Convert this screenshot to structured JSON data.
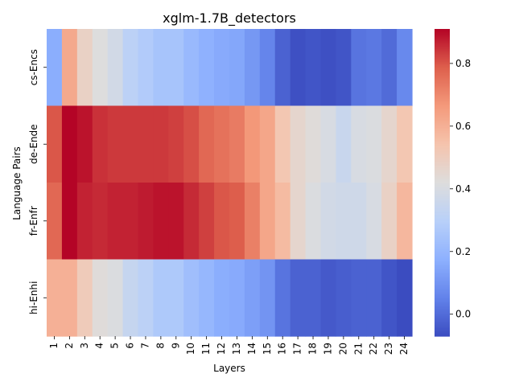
{
  "chart_data": {
    "type": "heatmap",
    "title": "xglm-1.7B_detectors",
    "xlabel": "Layers",
    "ylabel": "Language Pairs",
    "x_categories": [
      "1",
      "2",
      "3",
      "4",
      "5",
      "6",
      "7",
      "8",
      "9",
      "10",
      "11",
      "12",
      "13",
      "14",
      "15",
      "16",
      "17",
      "18",
      "19",
      "20",
      "21",
      "22",
      "23",
      "24"
    ],
    "y_categories": [
      "cs-Encs",
      "de-Ende",
      "fr-Enfr",
      "hi-Enhi"
    ],
    "values": [
      [
        0.17,
        0.62,
        0.48,
        0.42,
        0.38,
        0.31,
        0.28,
        0.25,
        0.25,
        0.21,
        0.18,
        0.16,
        0.15,
        0.11,
        0.06,
        -0.02,
        -0.06,
        -0.05,
        -0.06,
        -0.05,
        0.02,
        0.03,
        0.0,
        0.07
      ],
      [
        0.8,
        0.91,
        0.89,
        0.85,
        0.84,
        0.84,
        0.84,
        0.84,
        0.83,
        0.81,
        0.77,
        0.75,
        0.73,
        0.67,
        0.63,
        0.53,
        0.46,
        0.43,
        0.4,
        0.35,
        0.4,
        0.41,
        0.46,
        0.53
      ],
      [
        0.77,
        0.91,
        0.87,
        0.86,
        0.87,
        0.87,
        0.88,
        0.89,
        0.89,
        0.86,
        0.83,
        0.8,
        0.79,
        0.72,
        0.63,
        0.57,
        0.46,
        0.41,
        0.38,
        0.37,
        0.37,
        0.4,
        0.48,
        0.58
      ],
      [
        0.6,
        0.6,
        0.51,
        0.43,
        0.41,
        0.34,
        0.31,
        0.27,
        0.27,
        0.23,
        0.2,
        0.17,
        0.16,
        0.13,
        0.1,
        0.02,
        -0.02,
        -0.02,
        -0.04,
        -0.03,
        -0.02,
        -0.02,
        -0.05,
        -0.07
      ]
    ],
    "colormap": "coolwarm",
    "vmin": -0.07,
    "vmax": 0.91,
    "colorbar_ticks": [
      0.0,
      0.2,
      0.4,
      0.6,
      0.8
    ],
    "colorbar_tick_labels": [
      "0.0",
      "0.2",
      "0.4",
      "0.6",
      "0.8"
    ]
  }
}
